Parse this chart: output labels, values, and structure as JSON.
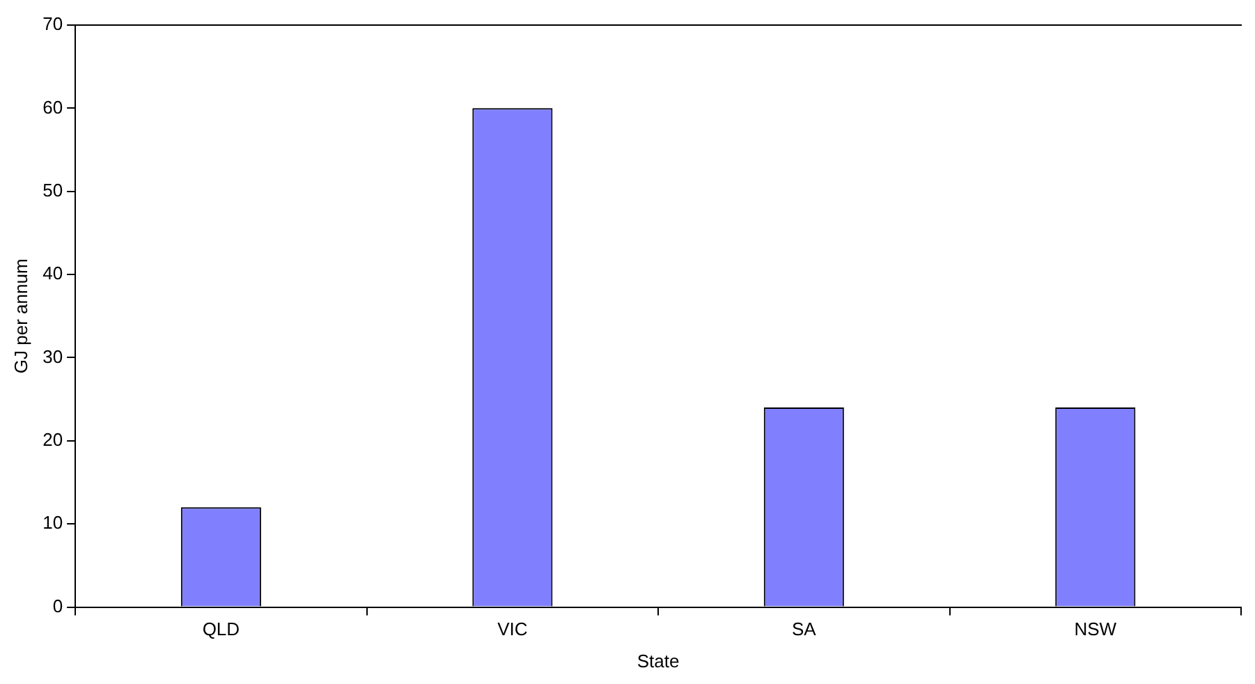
{
  "chart_data": {
    "type": "bar",
    "xlabel": "State",
    "ylabel": "GJ per annum",
    "categories": [
      "QLD",
      "VIC",
      "SA",
      "NSW"
    ],
    "values": [
      12,
      60,
      24,
      24
    ],
    "color": "#8080ff",
    "ylim": [
      0,
      70
    ],
    "yticks": [
      0,
      10,
      20,
      30,
      40,
      50,
      60,
      70
    ],
    "grid": false,
    "legend": false
  }
}
